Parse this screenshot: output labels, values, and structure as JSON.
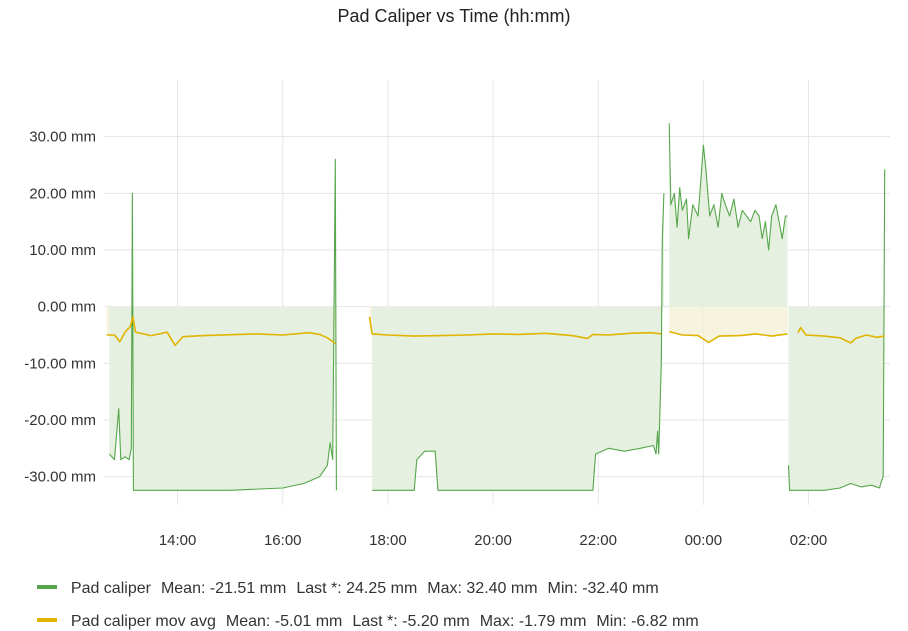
{
  "title": "Pad Caliper vs Time (hh:mm)",
  "colors": {
    "pad_caliper": "#56a64b",
    "pad_caliper_fill": "#e5f0e1",
    "mov_avg": "#e0b400",
    "mov_avg_fill": "#f3f0d4",
    "grid": "#e6e6e6",
    "axis_text": "#333333"
  },
  "legend": [
    {
      "name": "Pad caliper",
      "mean": "Mean: -21.51 mm",
      "last": "Last *: 24.25 mm",
      "max": "Max: 32.40 mm",
      "min": "Min: -32.40 mm"
    },
    {
      "name": "Pad caliper mov avg",
      "mean": "Mean: -5.01 mm",
      "last": "Last *: -5.20 mm",
      "max": "Max: -1.79 mm",
      "min": "Min: -6.82 mm"
    }
  ],
  "chart_data": {
    "type": "area",
    "title": "Pad Caliper vs Time (hh:mm)",
    "x_unit": "hours from 00:00",
    "xlim": [
      -11.4,
      3.55
    ],
    "ylim": [
      -35,
      40
    ],
    "yticks": [
      30,
      20,
      10,
      0,
      -10,
      -20,
      -30
    ],
    "ytick_labels": [
      "30.00 mm",
      "20.00 mm",
      "10.00 mm",
      "0.00 mm",
      "-10.00 mm",
      "-20.00 mm",
      "-30.00 mm"
    ],
    "xticks": [
      -10,
      -8,
      -6,
      -4,
      -2,
      0,
      2
    ],
    "xtick_labels": [
      "14:00",
      "16:00",
      "18:00",
      "20:00",
      "22:00",
      "00:00",
      "02:00"
    ],
    "grid": true,
    "legend_position": "bottom-left",
    "series": [
      {
        "name": "Pad caliper",
        "segments": [
          [
            [
              -11.3,
              -26
            ],
            [
              -11.2,
              -27
            ],
            [
              -11.12,
              -18
            ],
            [
              -11.08,
              -27
            ],
            [
              -11.0,
              -26.5
            ],
            [
              -10.92,
              -27
            ],
            [
              -10.88,
              -25
            ],
            [
              -10.86,
              20
            ],
            [
              -10.84,
              -32.4
            ],
            [
              -9.0,
              -32.4
            ],
            [
              -8.0,
              -32
            ],
            [
              -7.6,
              -31.2
            ],
            [
              -7.3,
              -30
            ],
            [
              -7.15,
              -28
            ],
            [
              -7.1,
              -24
            ],
            [
              -7.05,
              -27
            ],
            [
              -7.0,
              26
            ],
            [
              -6.98,
              -32.4
            ]
          ],
          [
            [
              -6.3,
              -32.4
            ],
            [
              -5.5,
              -32.4
            ],
            [
              -5.45,
              -27
            ],
            [
              -5.3,
              -25.5
            ],
            [
              -5.1,
              -25.5
            ],
            [
              -5.05,
              -32.4
            ],
            [
              -2.1,
              -32.4
            ],
            [
              -2.05,
              -26
            ],
            [
              -1.8,
              -25
            ],
            [
              -1.5,
              -25.5
            ],
            [
              -1.2,
              -25
            ],
            [
              -0.95,
              -24.5
            ],
            [
              -0.9,
              -26
            ],
            [
              -0.87,
              -22
            ],
            [
              -0.85,
              -26
            ],
            [
              -0.8,
              -10
            ],
            [
              -0.78,
              12
            ],
            [
              -0.75,
              20
            ]
          ],
          [
            [
              -0.65,
              32.4
            ],
            [
              -0.62,
              18
            ],
            [
              -0.55,
              20
            ],
            [
              -0.5,
              14
            ],
            [
              -0.45,
              21
            ],
            [
              -0.4,
              17
            ],
            [
              -0.32,
              19
            ],
            [
              -0.28,
              12
            ],
            [
              -0.2,
              18
            ],
            [
              -0.1,
              16
            ],
            [
              -0.05,
              22
            ],
            [
              0.0,
              28.5
            ],
            [
              0.05,
              24
            ],
            [
              0.12,
              16
            ],
            [
              0.2,
              18
            ],
            [
              0.28,
              14
            ],
            [
              0.35,
              20
            ],
            [
              0.42,
              18
            ],
            [
              0.5,
              16
            ],
            [
              0.58,
              19
            ],
            [
              0.66,
              14
            ],
            [
              0.74,
              17
            ],
            [
              0.82,
              16
            ],
            [
              0.9,
              15
            ],
            [
              0.98,
              17
            ],
            [
              1.06,
              16
            ],
            [
              1.12,
              12
            ],
            [
              1.18,
              15
            ],
            [
              1.24,
              10
            ],
            [
              1.3,
              16
            ],
            [
              1.38,
              18
            ],
            [
              1.44,
              15
            ],
            [
              1.5,
              12
            ],
            [
              1.56,
              16
            ],
            [
              1.6,
              16
            ]
          ],
          [
            [
              1.62,
              -28
            ],
            [
              1.64,
              -32.4
            ],
            [
              2.3,
              -32.4
            ],
            [
              2.6,
              -32
            ],
            [
              2.8,
              -31.2
            ],
            [
              3.0,
              -31.8
            ],
            [
              3.2,
              -31.5
            ],
            [
              3.35,
              -32
            ],
            [
              3.38,
              -31
            ],
            [
              3.42,
              -30
            ],
            [
              3.45,
              24.25
            ]
          ]
        ]
      },
      {
        "name": "Pad caliper mov avg",
        "segments": [
          [
            [
              -11.35,
              -5
            ],
            [
              -11.2,
              -5
            ],
            [
              -11.1,
              -6.2
            ],
            [
              -11.0,
              -4.5
            ],
            [
              -10.9,
              -3.5
            ],
            [
              -10.85,
              -1.79
            ],
            [
              -10.8,
              -4.5
            ],
            [
              -10.5,
              -5.1
            ],
            [
              -10.2,
              -4.5
            ],
            [
              -10.05,
              -6.82
            ],
            [
              -9.9,
              -5.3
            ],
            [
              -9.5,
              -5.1
            ],
            [
              -8.5,
              -4.8
            ],
            [
              -8.0,
              -5
            ],
            [
              -7.5,
              -4.6
            ],
            [
              -7.3,
              -4.9
            ],
            [
              -7.15,
              -5.5
            ],
            [
              -7.0,
              -6.5
            ]
          ],
          [
            [
              -6.35,
              -1.8
            ],
            [
              -6.3,
              -4.8
            ],
            [
              -6.0,
              -5
            ],
            [
              -5.5,
              -5.2
            ],
            [
              -5.0,
              -5.1
            ],
            [
              -4.5,
              -5
            ],
            [
              -4.0,
              -4.8
            ],
            [
              -3.5,
              -4.9
            ],
            [
              -3.0,
              -4.7
            ],
            [
              -2.5,
              -5.1
            ],
            [
              -2.2,
              -5.6
            ],
            [
              -2.1,
              -4.9
            ],
            [
              -1.8,
              -5
            ],
            [
              -1.4,
              -4.7
            ],
            [
              -1.0,
              -4.6
            ],
            [
              -0.8,
              -4.8
            ]
          ],
          [
            [
              -0.65,
              -4.4
            ],
            [
              -0.4,
              -5
            ],
            [
              -0.1,
              -5.1
            ],
            [
              0.1,
              -6.3
            ],
            [
              0.3,
              -5.2
            ],
            [
              0.7,
              -5.1
            ],
            [
              1.0,
              -4.8
            ],
            [
              1.3,
              -5.2
            ],
            [
              1.6,
              -4.8
            ]
          ],
          [
            [
              1.8,
              -4.6
            ],
            [
              1.85,
              -3.7
            ],
            [
              1.95,
              -5
            ],
            [
              2.3,
              -5.2
            ],
            [
              2.6,
              -5.5
            ],
            [
              2.8,
              -6.4
            ],
            [
              2.9,
              -5.6
            ],
            [
              3.1,
              -5
            ],
            [
              3.3,
              -5.4
            ],
            [
              3.45,
              -5.2
            ]
          ]
        ]
      }
    ]
  }
}
